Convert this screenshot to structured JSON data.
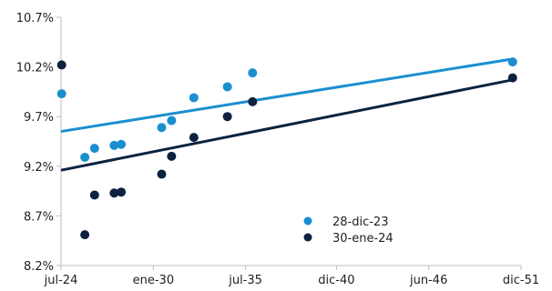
{
  "chart_data": {
    "type": "scatter",
    "x_axis_type": "date",
    "x_ticks": [
      {
        "date": "2024-07-01",
        "label": "jul-24"
      },
      {
        "date": "2030-01-01",
        "label": "ene-30"
      },
      {
        "date": "2035-07-01",
        "label": "jul-35"
      },
      {
        "date": "2040-12-01",
        "label": "dic-40"
      },
      {
        "date": "2046-06-01",
        "label": "jun-46"
      },
      {
        "date": "2051-12-01",
        "label": "dic-51"
      }
    ],
    "xlim": [
      "2024-07-01",
      "2051-12-01"
    ],
    "y_ticks": [
      8.2,
      8.7,
      9.2,
      9.7,
      10.2,
      10.7
    ],
    "y_tick_labels": [
      "8.2%",
      "8.7%",
      "9.2%",
      "9.7%",
      "10.2%",
      "10.7%"
    ],
    "ylim": [
      8.2,
      10.7
    ],
    "grid": false,
    "legend_position": "bottom-right",
    "series": [
      {
        "name": "28-dic-23",
        "color": "#1a8fd0",
        "points": [
          {
            "x": "2024-07-15",
            "y": 9.93
          },
          {
            "x": "2025-12-01",
            "y": 9.29
          },
          {
            "x": "2026-07-01",
            "y": 9.38
          },
          {
            "x": "2027-09-01",
            "y": 9.41
          },
          {
            "x": "2028-02-01",
            "y": 9.42
          },
          {
            "x": "2030-07-01",
            "y": 9.59
          },
          {
            "x": "2031-02-01",
            "y": 9.66
          },
          {
            "x": "2032-06-01",
            "y": 9.89
          },
          {
            "x": "2034-06-01",
            "y": 10.0
          },
          {
            "x": "2035-12-01",
            "y": 10.14
          },
          {
            "x": "2051-06-01",
            "y": 10.25
          }
        ],
        "trend": [
          {
            "x": "2024-07-01",
            "y": 9.55
          },
          {
            "x": "2051-06-01",
            "y": 10.28
          }
        ]
      },
      {
        "name": "30-ene-24",
        "color": "#0d2240",
        "points": [
          {
            "x": "2024-07-15",
            "y": 10.22
          },
          {
            "x": "2025-12-01",
            "y": 8.51
          },
          {
            "x": "2026-07-01",
            "y": 8.91
          },
          {
            "x": "2027-09-01",
            "y": 8.93
          },
          {
            "x": "2028-02-01",
            "y": 8.94
          },
          {
            "x": "2030-07-01",
            "y": 9.12
          },
          {
            "x": "2031-02-01",
            "y": 9.3
          },
          {
            "x": "2032-06-01",
            "y": 9.49
          },
          {
            "x": "2034-06-01",
            "y": 9.7
          },
          {
            "x": "2035-12-01",
            "y": 9.85
          },
          {
            "x": "2051-06-01",
            "y": 10.09
          }
        ],
        "trend": [
          {
            "x": "2024-07-01",
            "y": 9.16
          },
          {
            "x": "2051-06-01",
            "y": 10.07
          }
        ]
      }
    ]
  }
}
